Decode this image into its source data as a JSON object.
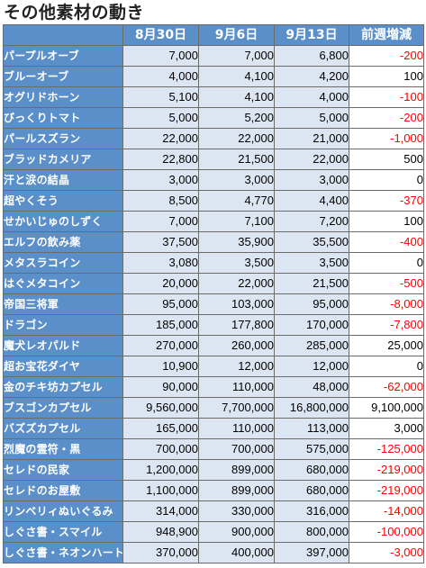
{
  "title": "その他素材の動き",
  "columns": [
    "",
    "8月30日",
    "9月6日",
    "9月13日",
    "前週増減"
  ],
  "rows": [
    {
      "name": "パープルオーブ",
      "aug30": "7,000",
      "sep6": "7,000",
      "sep13": "6,800",
      "change": "-200"
    },
    {
      "name": "ブルーオーブ",
      "aug30": "4,000",
      "sep6": "4,100",
      "sep13": "4,200",
      "change": "100"
    },
    {
      "name": "オグリドホーン",
      "aug30": "5,100",
      "sep6": "4,100",
      "sep13": "4,000",
      "change": "-100"
    },
    {
      "name": "びっくりトマト",
      "aug30": "5,000",
      "sep6": "5,200",
      "sep13": "5,000",
      "change": "-200"
    },
    {
      "name": "パールスズラン",
      "aug30": "22,000",
      "sep6": "22,000",
      "sep13": "21,000",
      "change": "-1,000"
    },
    {
      "name": "ブラッドカメリア",
      "aug30": "22,800",
      "sep6": "21,500",
      "sep13": "22,000",
      "change": "500"
    },
    {
      "name": "汗と涙の結晶",
      "aug30": "3,000",
      "sep6": "3,000",
      "sep13": "3,000",
      "change": "0"
    },
    {
      "name": "超やくそう",
      "aug30": "8,500",
      "sep6": "4,770",
      "sep13": "4,400",
      "change": "-370"
    },
    {
      "name": "せかいじゅのしずく",
      "aug30": "7,000",
      "sep6": "7,100",
      "sep13": "7,200",
      "change": "100"
    },
    {
      "name": "エルフの飲み薬",
      "aug30": "37,500",
      "sep6": "35,900",
      "sep13": "35,500",
      "change": "-400"
    },
    {
      "name": "メタスラコイン",
      "aug30": "3,080",
      "sep6": "3,500",
      "sep13": "3,500",
      "change": "0"
    },
    {
      "name": "はぐメタコイン",
      "aug30": "20,000",
      "sep6": "22,000",
      "sep13": "21,500",
      "change": "-500"
    },
    {
      "name": "帝国三将軍",
      "aug30": "95,000",
      "sep6": "103,000",
      "sep13": "95,000",
      "change": "-8,000"
    },
    {
      "name": "ドラゴン",
      "aug30": "185,000",
      "sep6": "177,800",
      "sep13": "170,000",
      "change": "-7,800"
    },
    {
      "name": "魔犬レオパルド",
      "aug30": "270,000",
      "sep6": "260,000",
      "sep13": "285,000",
      "change": "25,000"
    },
    {
      "name": "超お宝花ダイヤ",
      "aug30": "10,900",
      "sep6": "12,000",
      "sep13": "12,000",
      "change": "0"
    },
    {
      "name": "金のチキ坊カプセル",
      "aug30": "90,000",
      "sep6": "110,000",
      "sep13": "48,000",
      "change": "-62,000"
    },
    {
      "name": "ブスゴンカプセル",
      "aug30": "9,560,000",
      "sep6": "7,700,000",
      "sep13": "16,800,000",
      "change": "9,100,000"
    },
    {
      "name": "バズズカプセル",
      "aug30": "165,000",
      "sep6": "110,000",
      "sep13": "113,000",
      "change": "3,000"
    },
    {
      "name": "烈魔の霊符・黒",
      "aug30": "700,000",
      "sep6": "700,000",
      "sep13": "575,000",
      "change": "-125,000"
    },
    {
      "name": "セレドの民家",
      "aug30": "1,200,000",
      "sep6": "899,000",
      "sep13": "680,000",
      "change": "-219,000"
    },
    {
      "name": "セレドのお屋敷",
      "aug30": "1,100,000",
      "sep6": "899,000",
      "sep13": "680,000",
      "change": "-219,000"
    },
    {
      "name": "リンベリィぬいぐるみ",
      "aug30": "314,000",
      "sep6": "330,000",
      "sep13": "316,000",
      "change": "-14,000"
    },
    {
      "name": "しぐさ書・スマイル",
      "aug30": "948,900",
      "sep6": "900,000",
      "sep13": "800,000",
      "change": "-100,000"
    },
    {
      "name": "しぐさ書・ネオンハート",
      "aug30": "370,000",
      "sep6": "400,000",
      "sep13": "397,000",
      "change": "-3,000"
    }
  ]
}
